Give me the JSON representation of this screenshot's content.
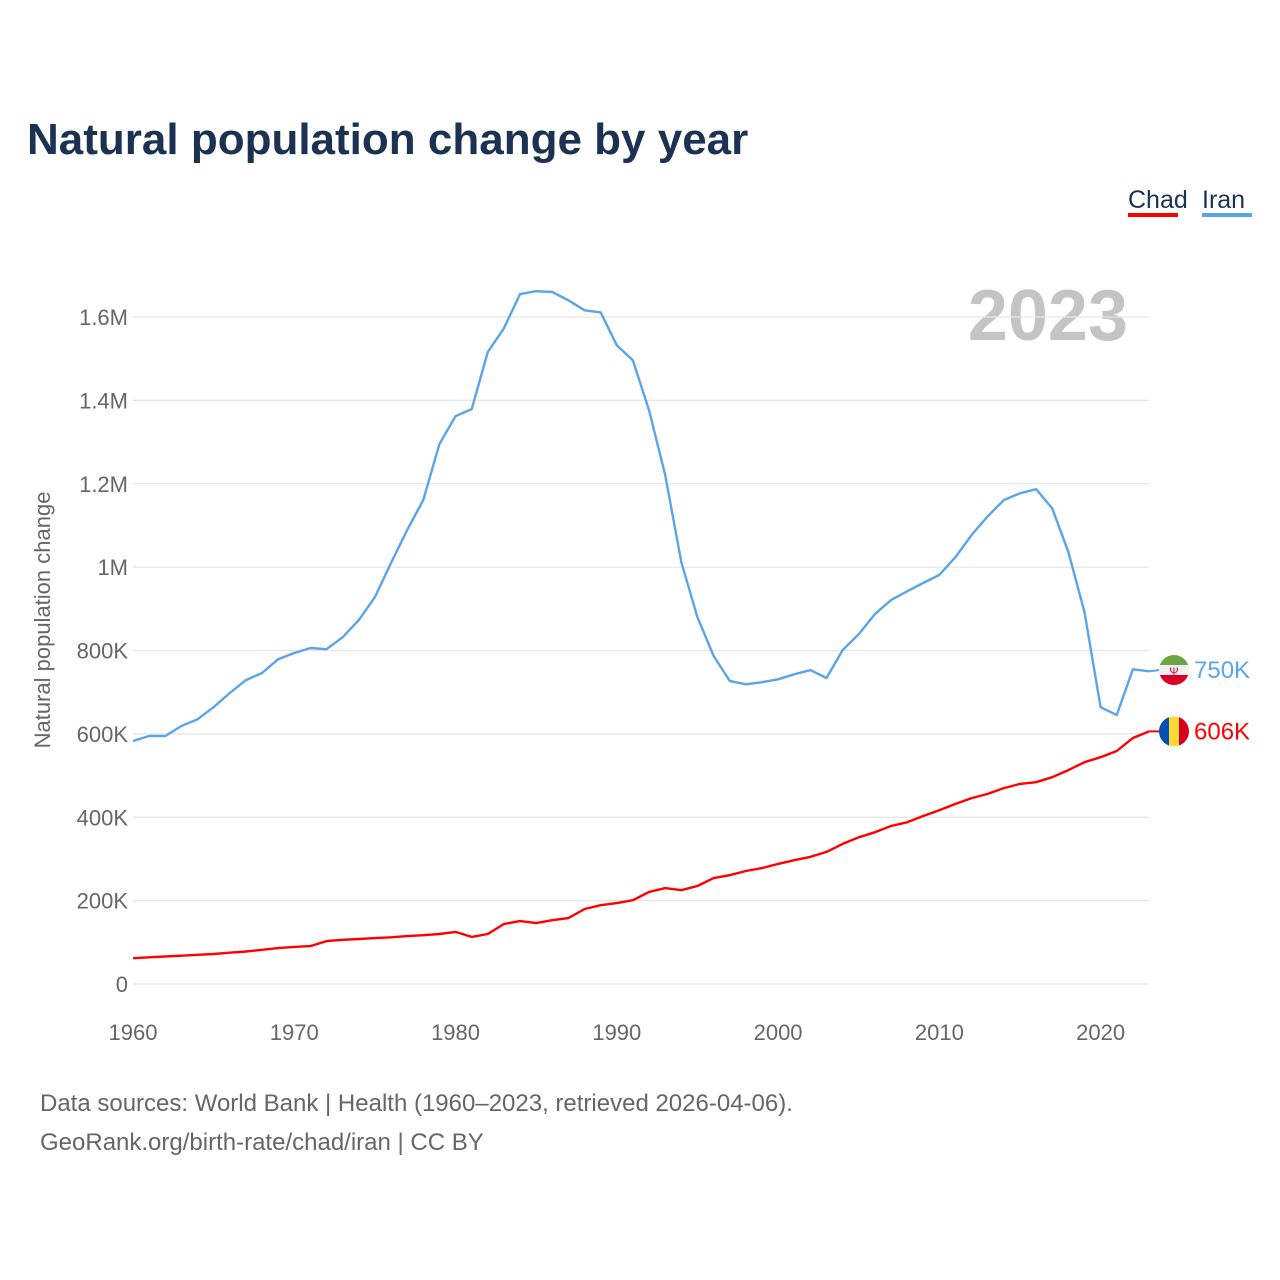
{
  "chart_data": {
    "type": "line",
    "title": "Natural population change by year",
    "xlabel": "",
    "ylabel": "Natural population change",
    "xlim": [
      1960,
      2023
    ],
    "ylim": [
      0,
      1600000
    ],
    "grid": true,
    "legend_placement": "top-right",
    "year_watermark": "2023",
    "x_ticks": [
      1960,
      1970,
      1980,
      1990,
      2000,
      2010,
      2020
    ],
    "y_ticks": [
      0,
      200000,
      400000,
      600000,
      800000,
      1000000,
      1200000,
      1400000,
      1600000
    ],
    "y_tick_labels": [
      "0",
      "200K",
      "400K",
      "600K",
      "800K",
      "1M",
      "1.2M",
      "1.4M",
      "1.6M"
    ],
    "series": [
      {
        "name": "Chad",
        "color": "#ff0000",
        "end_label": "606K",
        "flag": "chad-flag",
        "start_year": 1960,
        "values": [
          62000,
          64000,
          66000,
          68000,
          70000,
          72000,
          75000,
          78000,
          82000,
          86000,
          89000,
          91000,
          103000,
          106000,
          108000,
          110000,
          112000,
          115000,
          117000,
          120000,
          125000,
          113000,
          120000,
          144000,
          151000,
          146000,
          153000,
          158000,
          180000,
          189000,
          194000,
          201000,
          221000,
          230000,
          225000,
          235000,
          254000,
          261000,
          271000,
          278000,
          288000,
          297000,
          305000,
          317000,
          336000,
          352000,
          364000,
          379000,
          388000,
          403000,
          417000,
          432000,
          446000,
          456000,
          470000,
          480000,
          484000,
          496000,
          513000,
          532000,
          544000,
          559000,
          590000,
          606000
        ]
      },
      {
        "name": "Iran",
        "color": "#5aa5e8",
        "end_label": "750K",
        "flag": "iran-flag",
        "start_year": 1960,
        "values": [
          583000,
          595000,
          595000,
          619000,
          635000,
          664000,
          698000,
          729000,
          746000,
          779000,
          794000,
          806000,
          803000,
          832000,
          873000,
          928000,
          1010000,
          1089000,
          1161000,
          1295000,
          1362000,
          1379000,
          1516000,
          1573000,
          1655000,
          1662000,
          1660000,
          1640000,
          1616000,
          1611000,
          1532000,
          1496000,
          1376000,
          1221000,
          1012000,
          880000,
          787000,
          727000,
          719000,
          724000,
          731000,
          743000,
          753000,
          734000,
          801000,
          839000,
          887000,
          921000,
          942000,
          962000,
          981000,
          1024000,
          1077000,
          1122000,
          1161000,
          1177000,
          1187000,
          1141000,
          1036000,
          892000,
          664000,
          645000,
          755000,
          750000
        ]
      }
    ]
  },
  "footer": {
    "line1": "Data sources: World Bank | Health (1960–2023, retrieved 2026-04-06).",
    "line2": "GeoRank.org/birth-rate/chad/iran | CC BY"
  }
}
